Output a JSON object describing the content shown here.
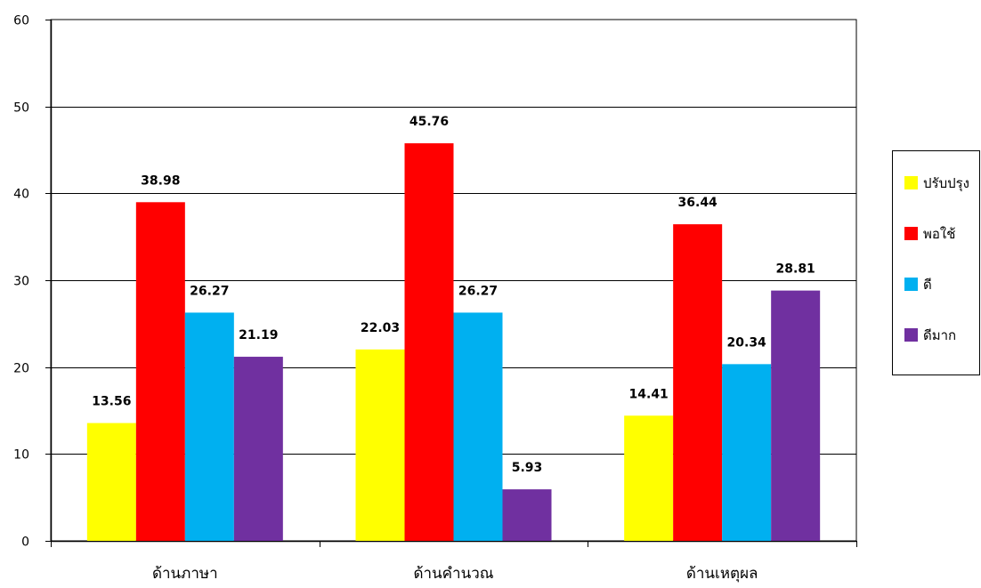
{
  "chart_data": {
    "type": "bar",
    "categories": [
      "ด้านภาษา",
      "ด้านคำนวณ",
      "ด้านเหตุผล"
    ],
    "series": [
      {
        "name": "ปรับปรุง",
        "color": "#FFFF00",
        "values": [
          13.56,
          22.03,
          14.41
        ]
      },
      {
        "name": "พอใช้",
        "color": "#FF0000",
        "values": [
          38.98,
          45.76,
          36.44
        ]
      },
      {
        "name": "ดี",
        "color": "#00B0F0",
        "values": [
          26.27,
          26.27,
          20.34
        ]
      },
      {
        "name": "ดีมาก",
        "color": "#7030A0",
        "values": [
          21.19,
          5.93,
          28.81
        ]
      }
    ],
    "ylim": [
      0,
      60
    ],
    "yticks": [
      0,
      10,
      20,
      30,
      40,
      50,
      60
    ],
    "grid": true,
    "legend": "right",
    "title": "",
    "xlabel": "",
    "ylabel": ""
  }
}
